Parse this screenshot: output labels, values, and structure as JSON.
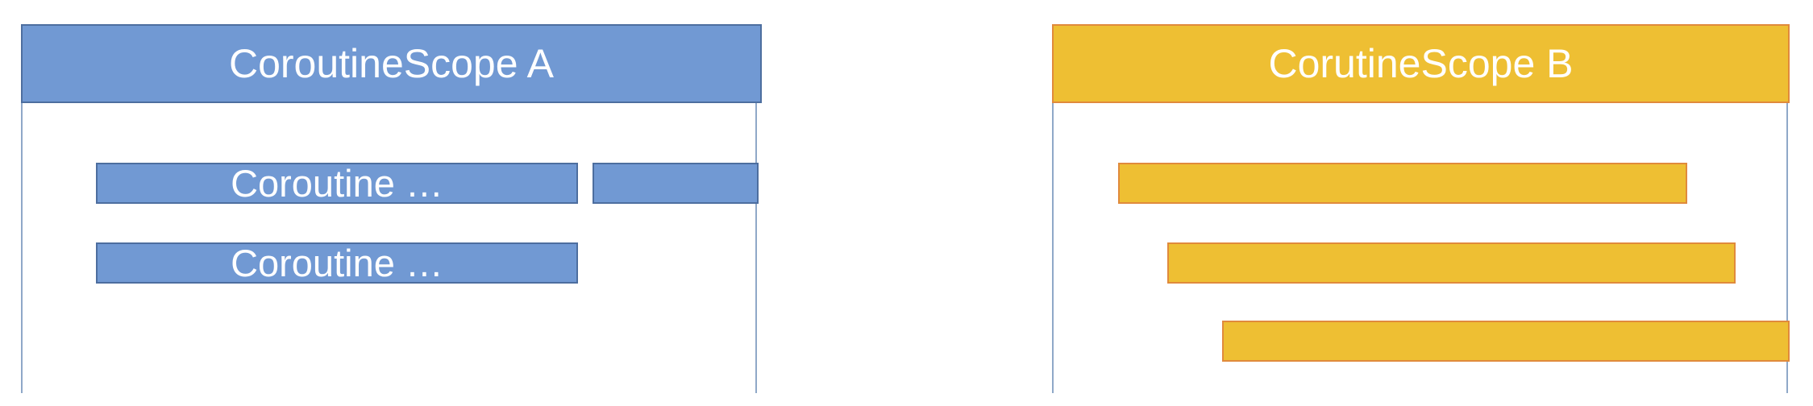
{
  "scope_a": {
    "title": "CoroutineScope A",
    "coroutines": [
      "Coroutine …",
      "",
      "Coroutine …"
    ]
  },
  "scope_b": {
    "title": "CorutineScope B",
    "coroutines": [
      "",
      "",
      ""
    ]
  },
  "colors": {
    "scope_a_fill": "#7199d3",
    "scope_a_border": "#4d6e9f",
    "scope_b_fill": "#eebf33",
    "scope_b_border": "#e08a3c",
    "scope_line": "#8fa8c8"
  }
}
